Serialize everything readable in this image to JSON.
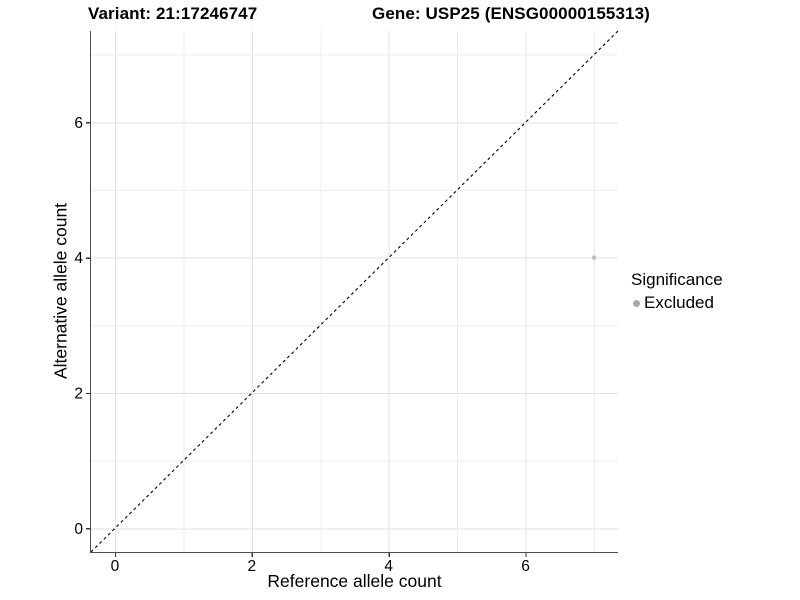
{
  "header": {
    "variant_title": "Variant: 21:17246747",
    "gene_title": "Gene: USP25 (ENSG00000155313)"
  },
  "axes": {
    "x_label": "Reference allele count",
    "y_label": "Alternative allele count"
  },
  "legend": {
    "title": "Significance",
    "items": [
      {
        "label": "Excluded",
        "color": "#a8a8a8"
      }
    ]
  },
  "colors": {
    "background": "#ffffff",
    "grid_major": "#e2e2e2",
    "grid_minor": "#ececec",
    "axis_line": "#4d4d4d",
    "tick_mark": "#333333",
    "tick_label": "#000000",
    "point": "#bdbdbd",
    "reference_line": "#000000"
  },
  "chart_data": {
    "type": "scatter",
    "title_left": "Variant: 21:17246747",
    "title_right": "Gene: USP25 (ENSG00000155313)",
    "xlabel": "Reference allele count",
    "ylabel": "Alternative allele count",
    "xlim": [
      -0.35,
      7.35
    ],
    "ylim": [
      -0.35,
      7.35
    ],
    "x_ticks": [
      0,
      2,
      4,
      6
    ],
    "y_ticks": [
      0,
      2,
      4,
      6
    ],
    "grid_values": [
      0,
      1,
      2,
      3,
      4,
      5,
      6,
      7
    ],
    "grid": "on",
    "legend_position": "right",
    "series": [
      {
        "name": "Excluded",
        "color": "#bdbdbd",
        "points": [
          {
            "x": 7,
            "y": 4
          }
        ]
      }
    ],
    "reference_line": {
      "kind": "identity",
      "equation": "y = x",
      "style": "dashed",
      "color": "#000000"
    }
  }
}
